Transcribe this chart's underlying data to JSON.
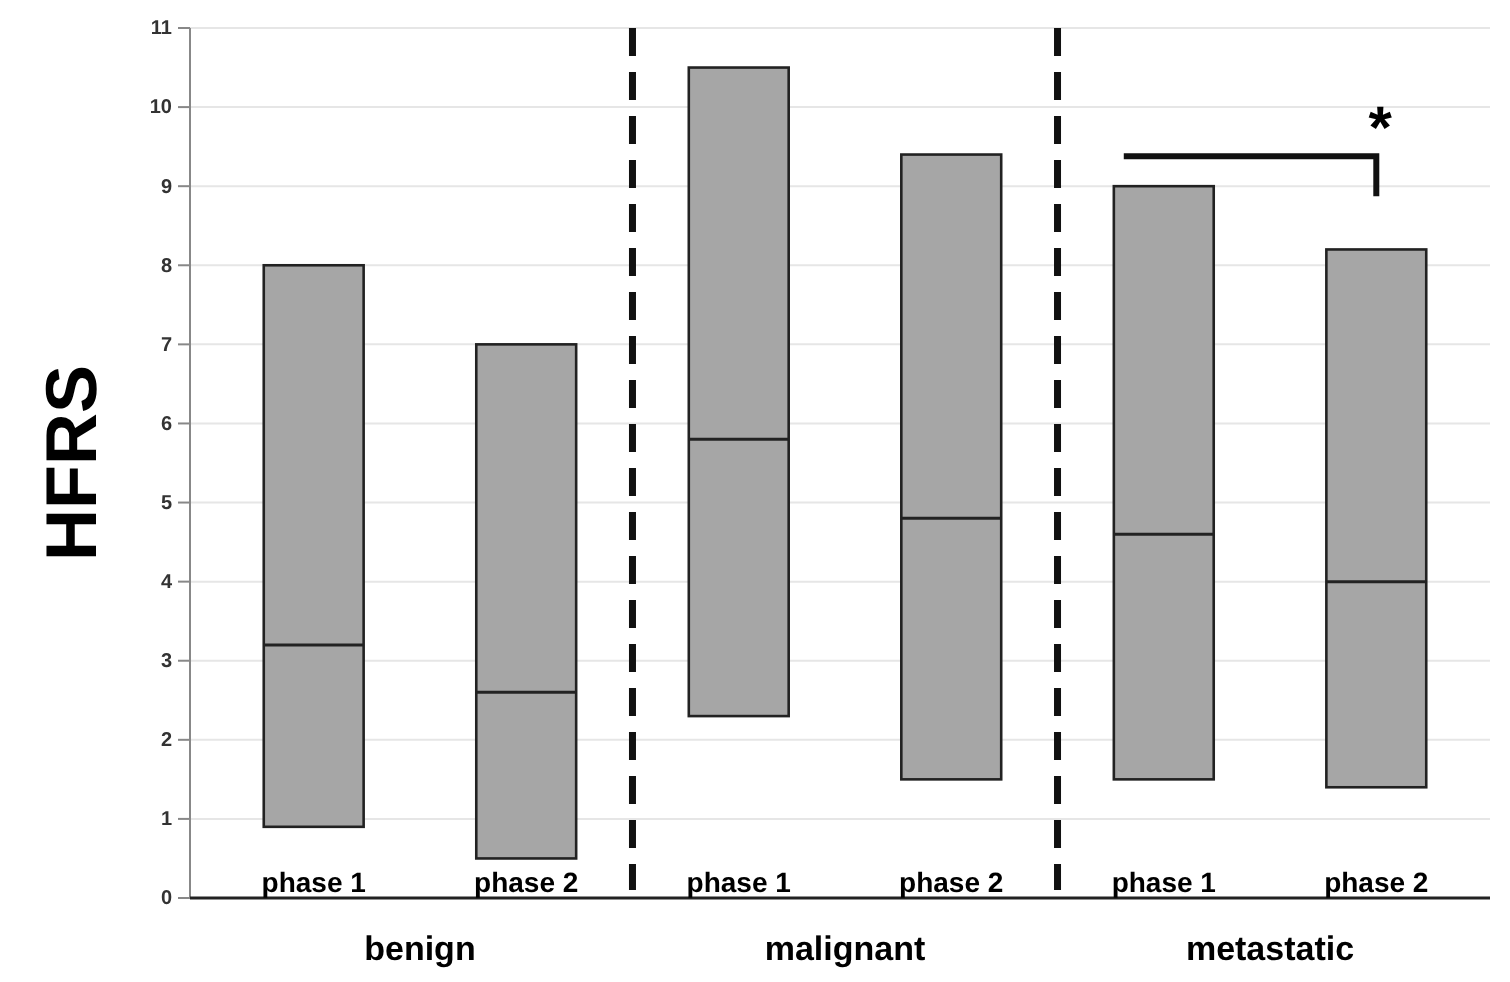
{
  "chart_data": {
    "type": "box",
    "ylabel": "HFRS",
    "categories": [
      "phase 1",
      "phase 2",
      "phase 1",
      "phase 2",
      "phase 1",
      "phase 2"
    ],
    "boxes": [
      {
        "low": 0.9,
        "q1": 0.9,
        "median": 3.2,
        "q3": 8,
        "high": 8
      },
      {
        "low": 0.5,
        "q1": 0.5,
        "median": 2.6,
        "q3": 7,
        "high": 7
      },
      {
        "low": 2.3,
        "q1": 2.3,
        "median": 5.8,
        "q3": 10.5,
        "high": 10.5
      },
      {
        "low": 1.5,
        "q1": 1.5,
        "median": 4.8,
        "q3": 9.4,
        "high": 9.4
      },
      {
        "low": 1.5,
        "q1": 1.5,
        "median": 4.6,
        "q3": 9,
        "high": 9
      },
      {
        "low": 1.4,
        "q1": 1.4,
        "median": 4,
        "q3": 8.2,
        "high": 8.2
      }
    ],
    "color": "#a6a6a6",
    "ylim": [
      0,
      11
    ],
    "yticks": [
      0,
      1,
      2,
      3,
      4,
      5,
      6,
      7,
      8,
      9,
      10,
      11
    ],
    "grid": "y",
    "annotations": [
      "benign",
      "malignant",
      "metastatic",
      "*"
    ]
  }
}
